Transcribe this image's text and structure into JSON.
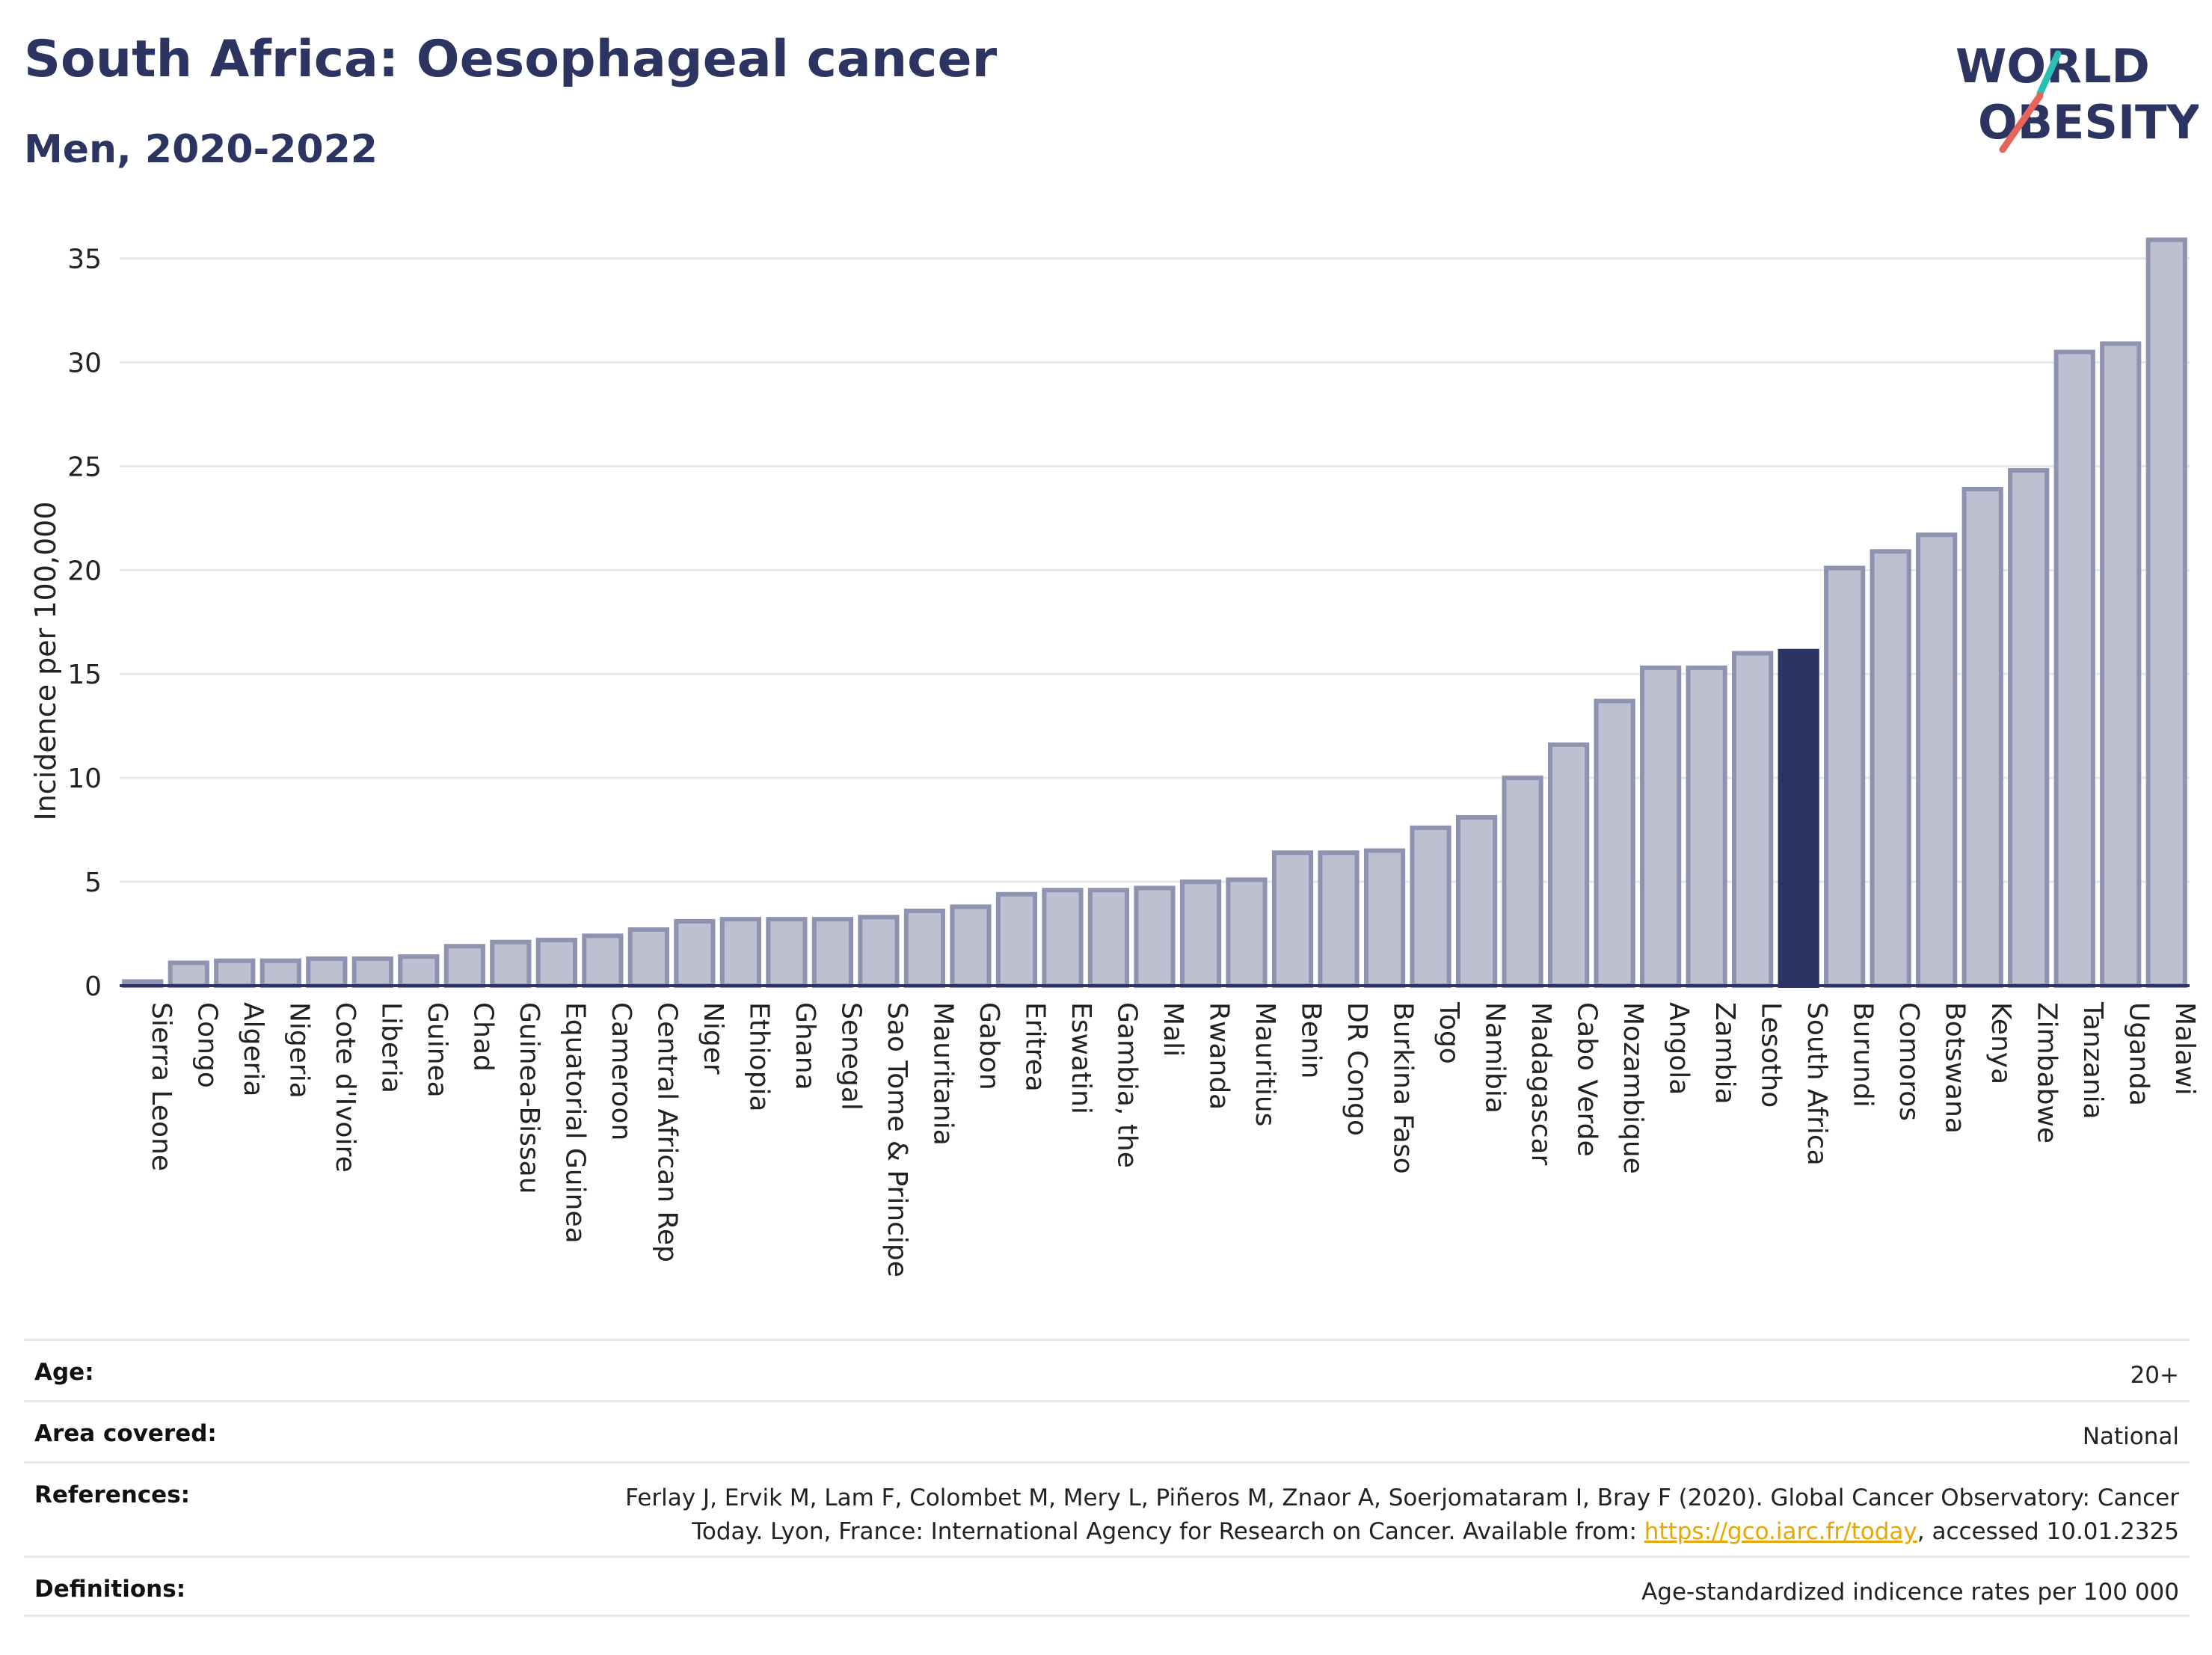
{
  "header": {
    "title": "South Africa: Oesophageal cancer",
    "subtitle": "Men, 2020-2022"
  },
  "logo": {
    "line1": "WORLD",
    "line2": "OBESITY",
    "accent_teal": "#2bbfb3",
    "accent_red": "#e8645a",
    "text_color": "#2c3561"
  },
  "chart_data": {
    "type": "bar",
    "ylabel": "Incidence per 100,000",
    "ylim": [
      0,
      37
    ],
    "yticks": [
      0,
      5,
      10,
      15,
      20,
      25,
      30,
      35
    ],
    "grid": true,
    "highlight": "South Africa",
    "bar_color": "#bcc0d0",
    "bar_edge_color": "#8d93b0",
    "highlight_color": "#2c3561",
    "categories": [
      "Sierra Leone",
      "Congo",
      "Algeria",
      "Nigeria",
      "Cote d'Ivoire",
      "Liberia",
      "Guinea",
      "Chad",
      "Guinea-Bissau",
      "Equatorial Guinea",
      "Cameroon",
      "Central African Rep",
      "Niger",
      "Ethiopia",
      "Ghana",
      "Senegal",
      "Sao Tome & Principe",
      "Mauritania",
      "Gabon",
      "Eritrea",
      "Eswatini",
      "Gambia, the",
      "Mali",
      "Rwanda",
      "Mauritius",
      "Benin",
      "DR Congo",
      "Burkina Faso",
      "Togo",
      "Namibia",
      "Madagascar",
      "Cabo Verde",
      "Mozambique",
      "Angola",
      "Zambia",
      "Lesotho",
      "South Africa",
      "Burundi",
      "Comoros",
      "Botswana",
      "Kenya",
      "Zimbabwe",
      "Tanzania",
      "Uganda",
      "Malawi"
    ],
    "values": [
      0.2,
      1.1,
      1.2,
      1.2,
      1.3,
      1.3,
      1.4,
      1.9,
      2.1,
      2.2,
      2.4,
      2.7,
      3.1,
      3.2,
      3.2,
      3.2,
      3.3,
      3.6,
      3.8,
      4.4,
      4.6,
      4.6,
      4.7,
      5.0,
      5.1,
      6.4,
      6.4,
      6.5,
      7.6,
      8.1,
      10.0,
      11.6,
      13.7,
      15.3,
      15.3,
      16.0,
      16.1,
      20.1,
      20.9,
      21.7,
      23.9,
      24.8,
      30.5,
      30.9,
      35.9
    ]
  },
  "meta": {
    "age_label": "Age:",
    "age_value": "20+",
    "area_label": "Area covered:",
    "area_value": "National",
    "references_label": "References:",
    "references_line1": "Ferlay J, Ervik M, Lam F, Colombet M, Mery L, Piñeros M, Znaor A, Soerjomataram I, Bray F (2020). Global Cancer Observatory: Cancer",
    "references_line2_pre": "Today. Lyon, France: International Agency for Research on Cancer. Available from: ",
    "references_link": "https://gco.iarc.fr/today",
    "references_line2_post": ", accessed 10.01.2325",
    "definitions_label": "Definitions:",
    "definitions_value": "Age-standardized indicence rates per 100 000"
  }
}
